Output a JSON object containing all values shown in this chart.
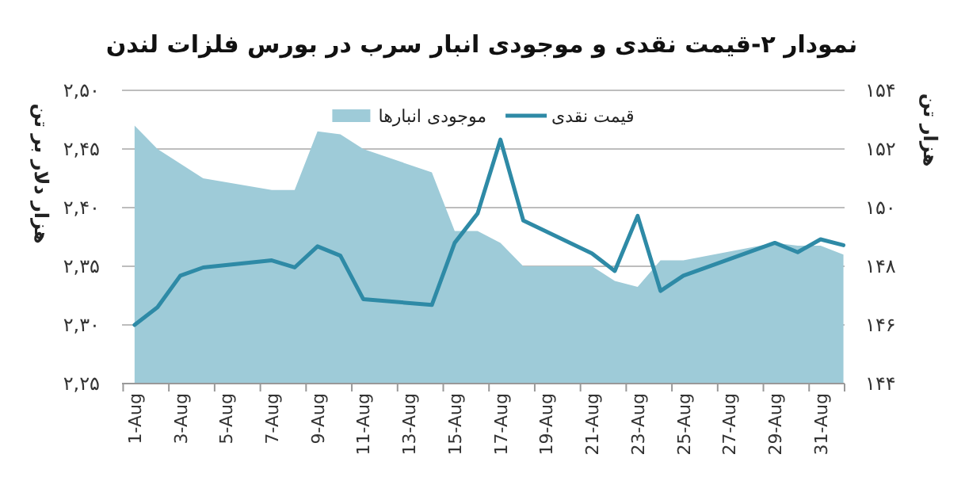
{
  "chart_data": {
    "type": "line",
    "title": "نمودار ۲-قیمت نقدی و موجودی انبار سرب در بورس فلزات لندن",
    "ylabel": "هزار دلار بر تن",
    "y2label": "هزار تن",
    "categories": [
      "1-Aug",
      null,
      "3-Aug",
      null,
      "5-Aug",
      null,
      "7-Aug",
      null,
      "9-Aug",
      null,
      "11-Aug",
      null,
      "13-Aug",
      null,
      "15-Aug",
      null,
      "17-Aug",
      null,
      "19-Aug",
      null,
      "21-Aug",
      null,
      "23-Aug",
      null,
      "25-Aug",
      null,
      "27-Aug",
      null,
      "29-Aug",
      null,
      "31-Aug",
      null
    ],
    "series": [
      {
        "name": "موجودی انبارها",
        "type": "area",
        "axis": "y2",
        "color": "#9ecbd8",
        "values": [
          152.8,
          152.0,
          151.5,
          151.0,
          null,
          null,
          150.6,
          150.6,
          152.6,
          152.5,
          152.0,
          null,
          null,
          151.2,
          149.2,
          149.2,
          148.8,
          148.0,
          null,
          null,
          148.0,
          147.5,
          147.3,
          148.2,
          148.2,
          null,
          null,
          null,
          148.8,
          148.7,
          148.7,
          148.4
        ]
      },
      {
        "name": "قیمت نقدی",
        "color": "#2e8aa6",
        "values": [
          2.3,
          2.315,
          2.342,
          2.349,
          null,
          null,
          2.355,
          2.349,
          2.367,
          2.359,
          2.322,
          null,
          null,
          2.317,
          2.37,
          2.395,
          2.458,
          2.389,
          null,
          null,
          2.361,
          2.346,
          2.393,
          2.329,
          2.342,
          null,
          null,
          null,
          2.37,
          2.362,
          2.373,
          2.368
        ]
      }
    ],
    "ylim": [
      2.25,
      2.5
    ],
    "yticks": [
      {
        "value": 2.25,
        "label": "۲,۲۵"
      },
      {
        "value": 2.3,
        "label": "۲,۳۰"
      },
      {
        "value": 2.35,
        "label": "۲,۳۵"
      },
      {
        "value": 2.4,
        "label": "۲,۴۰"
      },
      {
        "value": 2.45,
        "label": "۲,۴۵"
      },
      {
        "value": 2.5,
        "label": "۲,۵۰"
      }
    ],
    "y2lim": [
      144,
      154
    ],
    "y2ticks": [
      {
        "value": 144,
        "label": "۱۴۴"
      },
      {
        "value": 146,
        "label": "۱۴۶"
      },
      {
        "value": 148,
        "label": "۱۴۸"
      },
      {
        "value": 150,
        "label": "۱۵۰"
      },
      {
        "value": 152,
        "label": "۱۵۲"
      },
      {
        "value": 154,
        "label": "۱۵۴"
      }
    ],
    "grid": "y",
    "legend": "top"
  }
}
